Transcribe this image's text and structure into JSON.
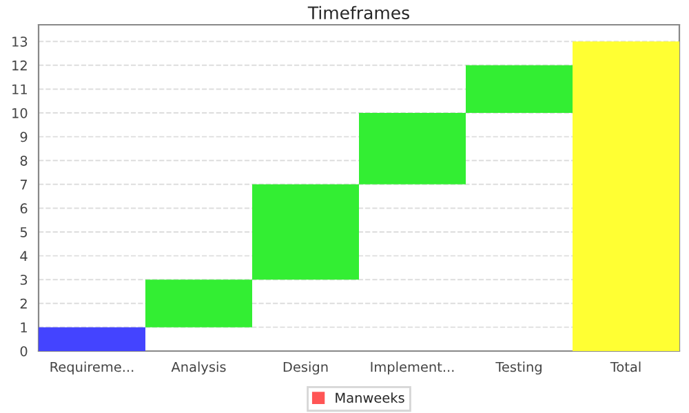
{
  "chart_data": {
    "type": "bar",
    "title": "Timeframes",
    "categories": [
      "Requireme...",
      "Analysis",
      "Design",
      "Implement...",
      "Testing",
      "Total"
    ],
    "series": [
      {
        "name": "Manweeks",
        "color": "#ff5555",
        "colors": [
          "#4444ff",
          "#33ee33",
          "#33ee33",
          "#33ee33",
          "#33ee33",
          "#ffff33"
        ],
        "values": [
          1,
          2,
          4,
          3,
          2,
          13
        ],
        "base": [
          0,
          1,
          3,
          7,
          10,
          0
        ]
      }
    ],
    "ylim": [
      0,
      13.7
    ],
    "yticks": [
      0,
      1,
      2,
      3,
      4,
      5,
      6,
      7,
      8,
      9,
      10,
      11,
      12,
      13
    ],
    "grid": "y",
    "legend": "bottom"
  }
}
